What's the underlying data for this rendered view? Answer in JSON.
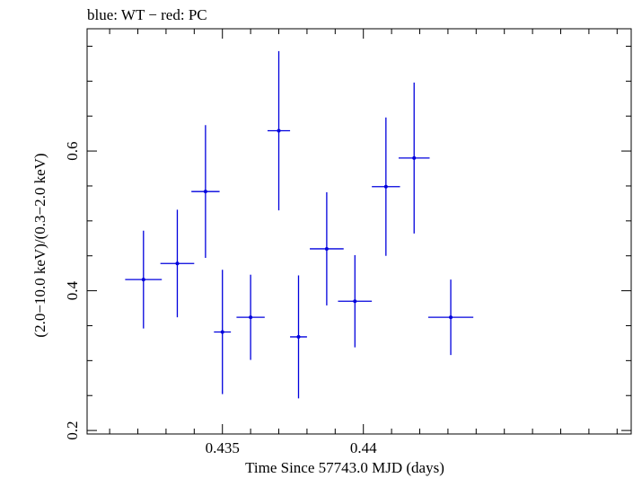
{
  "chart_data": {
    "type": "scatter",
    "title": "blue: WT − red: PC",
    "xlabel": "Time Since 57743.0 MJD (days)",
    "ylabel": "(2.0−10.0 keV)/(0.3−2.0 keV)",
    "xlim": [
      0.4302,
      0.4495
    ],
    "ylim": [
      0.195,
      0.775
    ],
    "x_ticks": [
      {
        "value": 0.435,
        "label": "0.435"
      },
      {
        "value": 0.44,
        "label": "0.44"
      }
    ],
    "y_ticks": [
      {
        "value": 0.2,
        "label": "0.2"
      },
      {
        "value": 0.4,
        "label": "0.4"
      },
      {
        "value": 0.6,
        "label": "0.6"
      }
    ],
    "grid": false,
    "series": [
      {
        "color": "#0000dd",
        "points": [
          {
            "x": 0.4322,
            "xerr": 0.00065,
            "y": 0.416,
            "yerr_low": 0.07,
            "yerr_high": 0.07
          },
          {
            "x": 0.4334,
            "xerr": 0.0006,
            "y": 0.439,
            "yerr_low": 0.077,
            "yerr_high": 0.077
          },
          {
            "x": 0.4344,
            "xerr": 0.0005,
            "y": 0.542,
            "yerr_low": 0.095,
            "yerr_high": 0.095
          },
          {
            "x": 0.435,
            "xerr": 0.0003,
            "y": 0.341,
            "yerr_low": 0.089,
            "yerr_high": 0.089
          },
          {
            "x": 0.436,
            "xerr": 0.0005,
            "y": 0.362,
            "yerr_low": 0.061,
            "yerr_high": 0.061
          },
          {
            "x": 0.437,
            "xerr": 0.0004,
            "y": 0.629,
            "yerr_low": 0.114,
            "yerr_high": 0.114
          },
          {
            "x": 0.4377,
            "xerr": 0.0003,
            "y": 0.334,
            "yerr_low": 0.088,
            "yerr_high": 0.088
          },
          {
            "x": 0.4387,
            "xerr": 0.0006,
            "y": 0.46,
            "yerr_low": 0.081,
            "yerr_high": 0.081
          },
          {
            "x": 0.4397,
            "xerr": 0.0006,
            "y": 0.385,
            "yerr_low": 0.066,
            "yerr_high": 0.066
          },
          {
            "x": 0.4408,
            "xerr": 0.0005,
            "y": 0.549,
            "yerr_low": 0.099,
            "yerr_high": 0.099
          },
          {
            "x": 0.4418,
            "xerr": 0.00055,
            "y": 0.59,
            "yerr_low": 0.108,
            "yerr_high": 0.108
          },
          {
            "x": 0.4431,
            "xerr": 0.0008,
            "y": 0.362,
            "yerr_low": 0.054,
            "yerr_high": 0.054
          }
        ]
      }
    ]
  }
}
